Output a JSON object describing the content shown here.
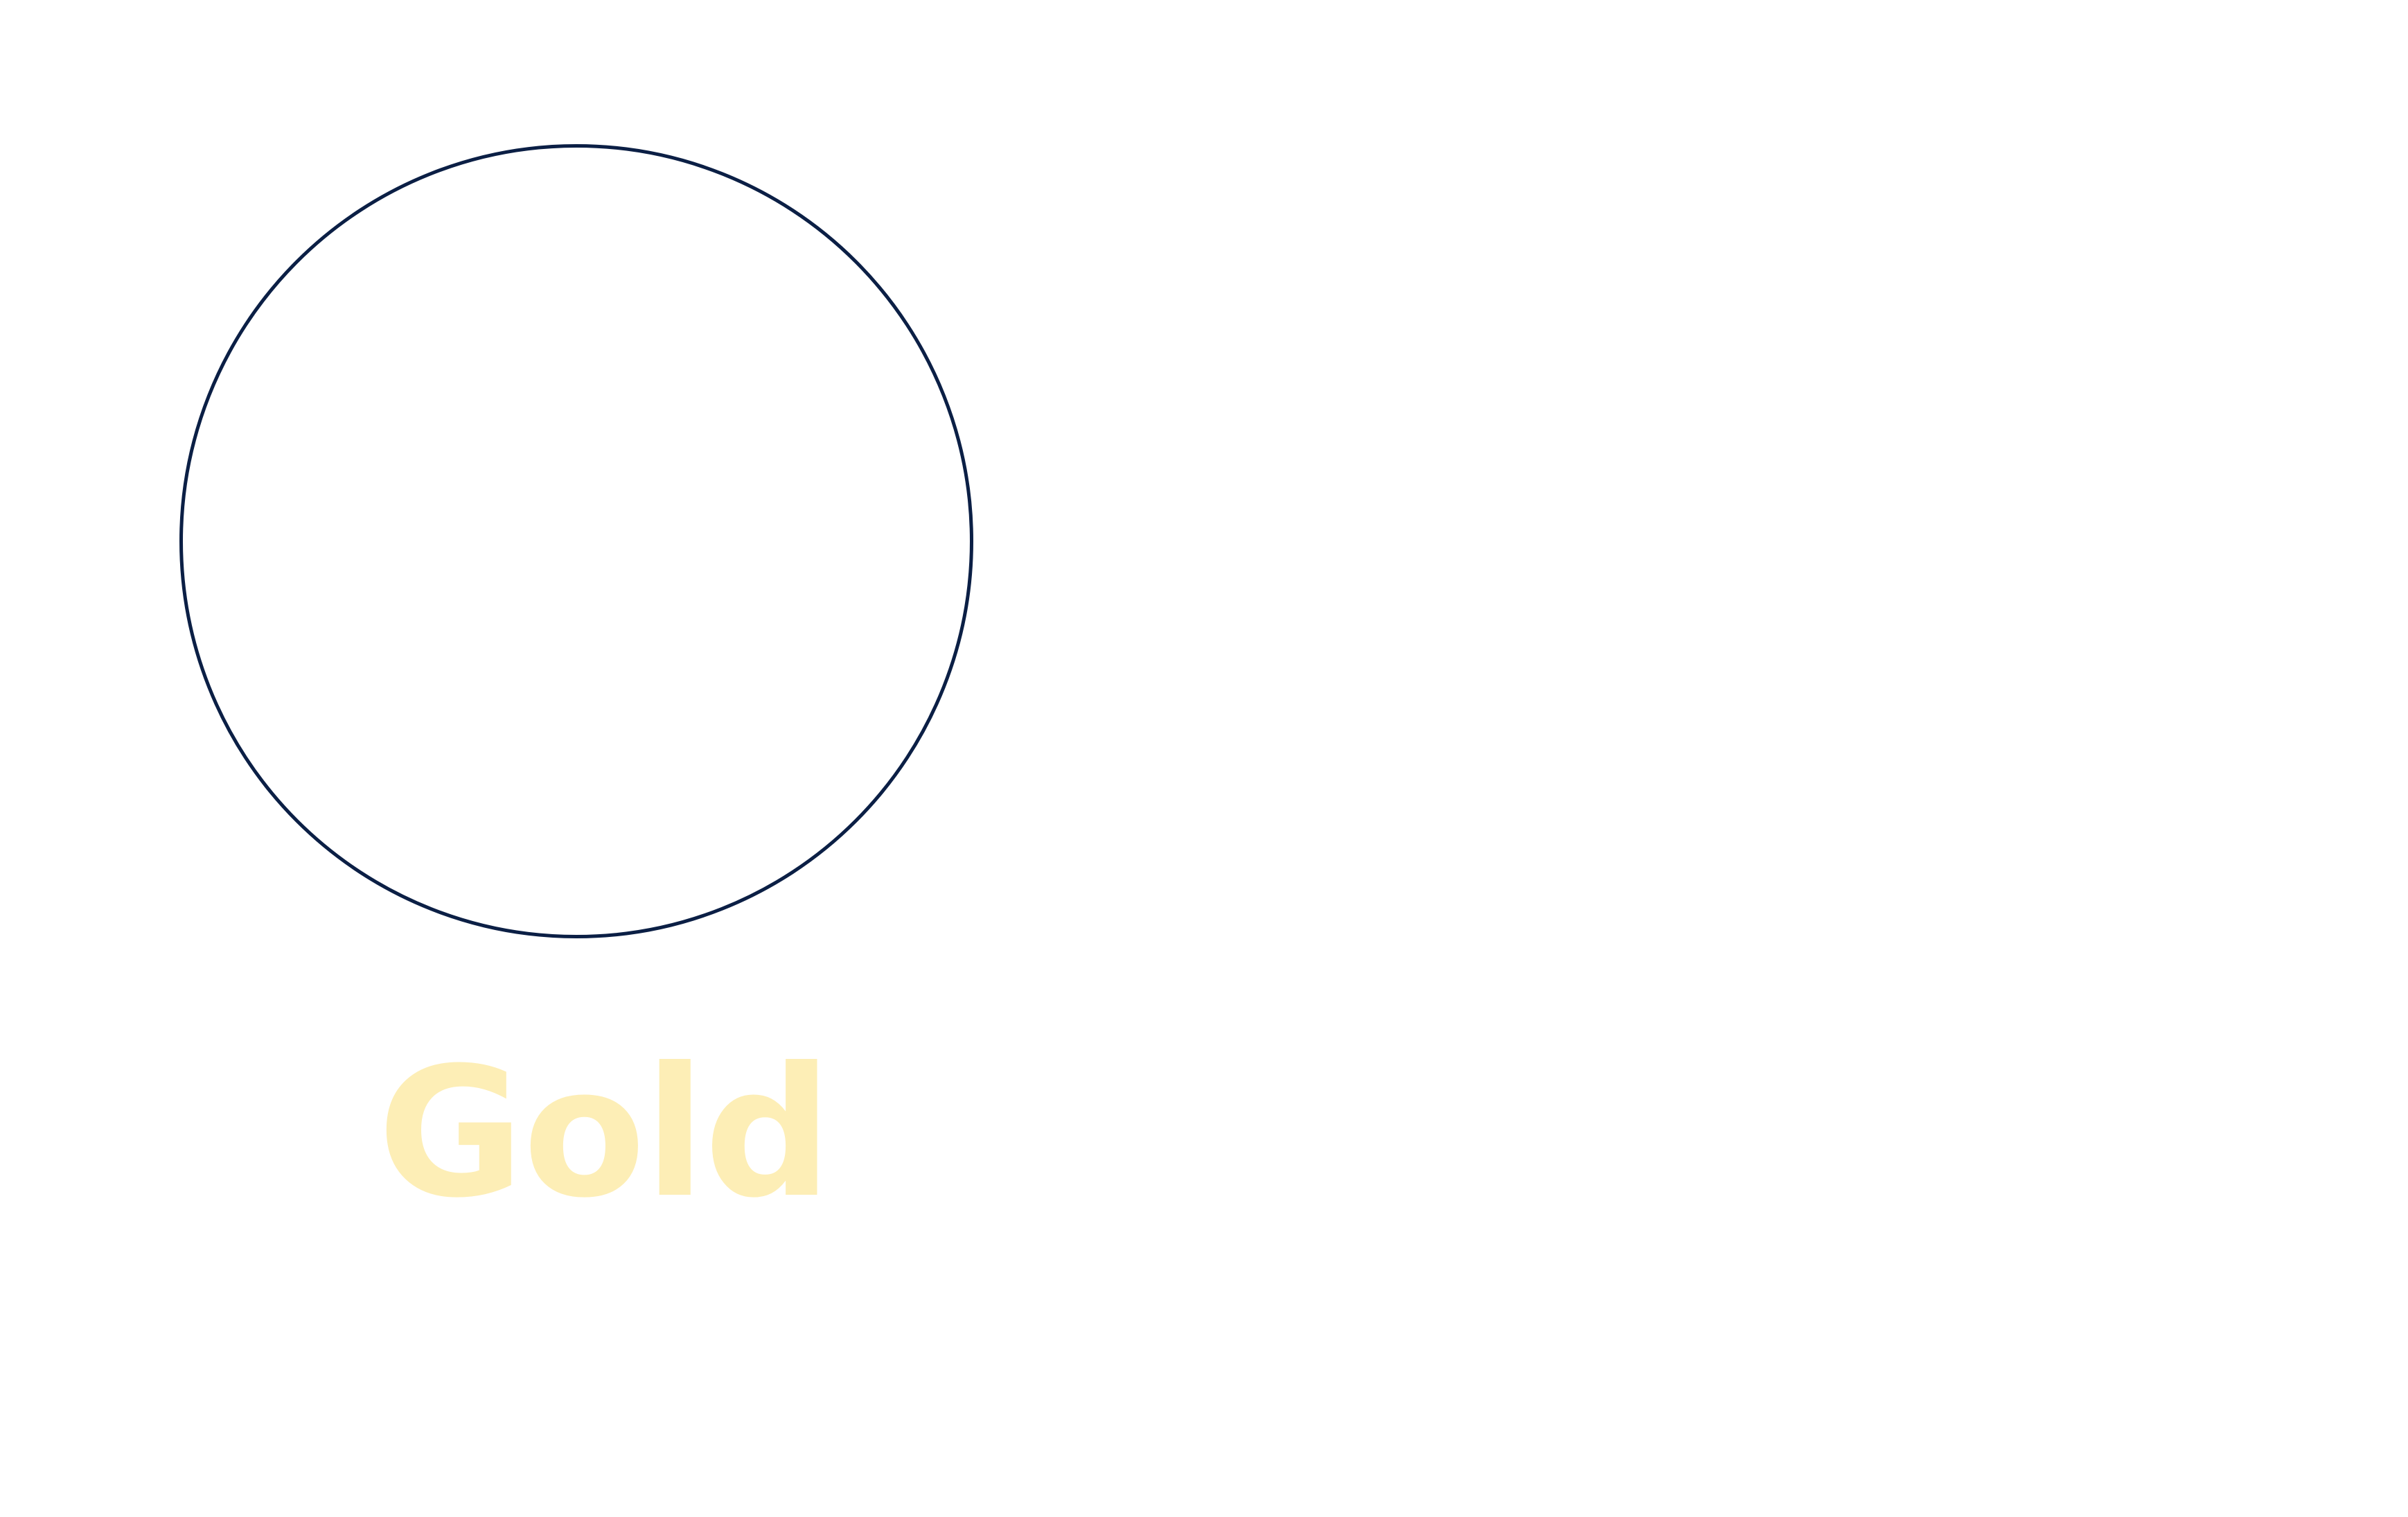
{
  "label": {
    "text": "Gold"
  },
  "colors": {
    "background": "#ffffff",
    "ring_stroke": "#0b1f45",
    "label_text": "#fdeeb6"
  }
}
